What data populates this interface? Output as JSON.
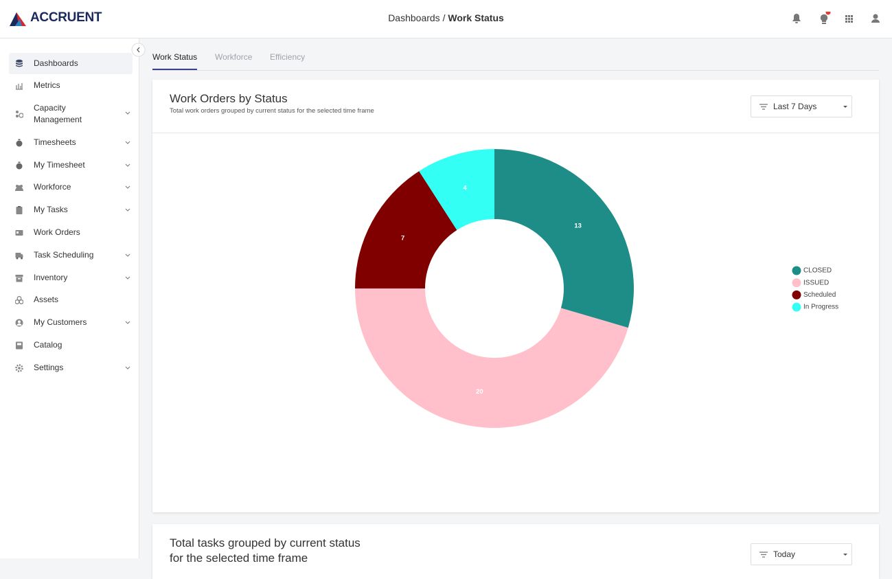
{
  "header": {
    "brand": "ACCRUENT",
    "breadcrumb_parent": "Dashboards",
    "breadcrumb_separator": "/",
    "breadcrumb_current": "Work Status"
  },
  "sidebar": {
    "items": [
      "Dashboards",
      "Metrics",
      "Capacity Management",
      "Timesheets",
      "My Timesheet",
      "Workforce",
      "My Tasks",
      "Work Orders",
      "Task Scheduling",
      "Inventory",
      "Assets",
      "My Customers",
      "Catalog",
      "Settings"
    ]
  },
  "tabs": [
    "Work Status",
    "Workforce",
    "Efficiency"
  ],
  "card": {
    "title": "Work Orders by Status",
    "subtitle": "Total work orders grouped by current status for the selected time frame",
    "filter": "Last 7 Days"
  },
  "chart_data": {
    "type": "donut",
    "categories": [
      "CLOSED",
      "ISSUED",
      "Scheduled",
      "In Progress"
    ],
    "values": [
      13,
      20,
      7,
      4
    ],
    "colors": [
      "#1e8c87",
      "#ffc0cb",
      "#800000",
      "#33fff5"
    ],
    "legend": "right"
  },
  "card2": {
    "title": "Total tasks grouped by current status for the selected time frame",
    "filter": "Today"
  }
}
